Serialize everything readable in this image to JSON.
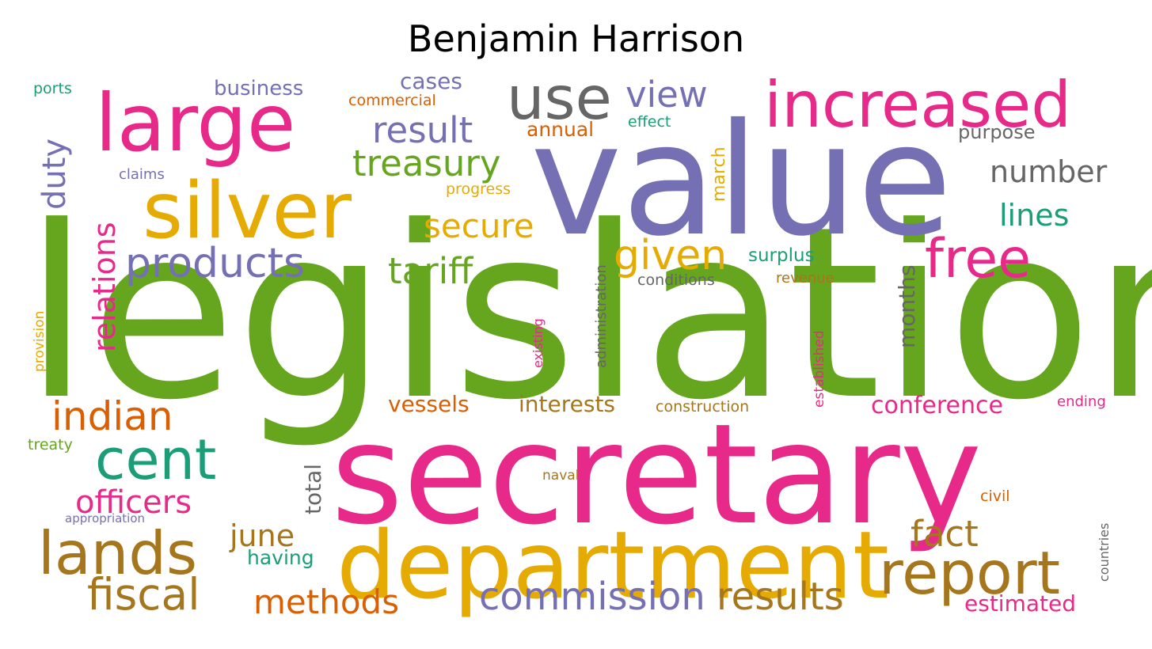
{
  "title": "Benjamin Harrison",
  "palette": {
    "green": "#66a61e",
    "magenta": "#e7298a",
    "purple": "#7570b3",
    "gold": "#e6ab02",
    "orange": "#d95f02",
    "teal": "#1b9e77",
    "brown": "#a6761d",
    "gray": "#666666"
  },
  "words": [
    {
      "text": "legislation",
      "color": "green"
    },
    {
      "text": "secretary",
      "color": "magenta"
    },
    {
      "text": "value",
      "color": "purple"
    },
    {
      "text": "department",
      "color": "gold"
    },
    {
      "text": "silver",
      "color": "gold"
    },
    {
      "text": "large",
      "color": "magenta"
    },
    {
      "text": "increased",
      "color": "magenta"
    },
    {
      "text": "use",
      "color": "gray"
    },
    {
      "text": "report",
      "color": "brown"
    },
    {
      "text": "lands",
      "color": "brown"
    },
    {
      "text": "free",
      "color": "magenta"
    },
    {
      "text": "cent",
      "color": "teal"
    },
    {
      "text": "products",
      "color": "purple"
    },
    {
      "text": "fiscal",
      "color": "brown"
    },
    {
      "text": "indian",
      "color": "orange"
    },
    {
      "text": "commission",
      "color": "purple"
    },
    {
      "text": "results",
      "color": "brown"
    },
    {
      "text": "given",
      "color": "gold"
    },
    {
      "text": "relations",
      "color": "magenta"
    },
    {
      "text": "treasury",
      "color": "green"
    },
    {
      "text": "result",
      "color": "purple"
    },
    {
      "text": "view",
      "color": "purple"
    },
    {
      "text": "fact",
      "color": "brown"
    },
    {
      "text": "officers",
      "color": "magenta"
    },
    {
      "text": "tariff",
      "color": "green"
    },
    {
      "text": "methods",
      "color": "orange"
    },
    {
      "text": "secure",
      "color": "gold"
    },
    {
      "text": "number",
      "color": "gray"
    },
    {
      "text": "june",
      "color": "brown"
    },
    {
      "text": "lines",
      "color": "teal"
    },
    {
      "text": "duty",
      "color": "purple"
    },
    {
      "text": "conference",
      "color": "magenta"
    },
    {
      "text": "months",
      "color": "gray"
    },
    {
      "text": "interests",
      "color": "brown"
    },
    {
      "text": "vessels",
      "color": "orange"
    },
    {
      "text": "estimated",
      "color": "magenta"
    },
    {
      "text": "total",
      "color": "gray"
    },
    {
      "text": "cases",
      "color": "purple"
    },
    {
      "text": "business",
      "color": "purple"
    },
    {
      "text": "surplus",
      "color": "teal"
    },
    {
      "text": "having",
      "color": "teal"
    },
    {
      "text": "annual",
      "color": "orange"
    },
    {
      "text": "purpose",
      "color": "gray"
    },
    {
      "text": "march",
      "color": "gold"
    },
    {
      "text": "administration",
      "color": "gray"
    },
    {
      "text": "conditions",
      "color": "gray"
    },
    {
      "text": "existing",
      "color": "magenta"
    },
    {
      "text": "established",
      "color": "magenta"
    },
    {
      "text": "construction",
      "color": "brown"
    },
    {
      "text": "revenue",
      "color": "brown"
    },
    {
      "text": "commercial",
      "color": "orange"
    },
    {
      "text": "effect",
      "color": "teal"
    },
    {
      "text": "progress",
      "color": "gold"
    },
    {
      "text": "claims",
      "color": "purple"
    },
    {
      "text": "ports",
      "color": "teal"
    },
    {
      "text": "provision",
      "color": "gold"
    },
    {
      "text": "treaty",
      "color": "green"
    },
    {
      "text": "appropriation",
      "color": "purple"
    },
    {
      "text": "naval",
      "color": "brown"
    },
    {
      "text": "civil",
      "color": "orange"
    },
    {
      "text": "ending",
      "color": "magenta"
    },
    {
      "text": "countries",
      "color": "gray"
    }
  ]
}
